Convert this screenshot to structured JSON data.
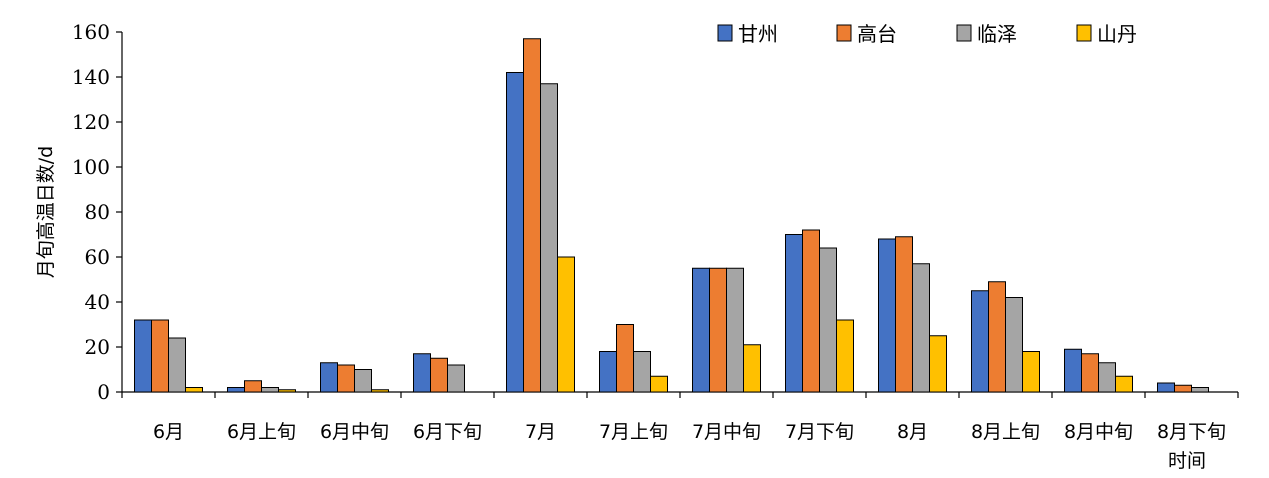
{
  "chart_data": {
    "type": "bar",
    "title": "",
    "xlabel": "时间",
    "ylabel": "月旬高温日数/d",
    "ylim": [
      0,
      160
    ],
    "yticks": [
      0,
      20,
      40,
      60,
      80,
      100,
      120,
      140,
      160
    ],
    "grid": false,
    "legend_position": "top-right",
    "categories": [
      "6月",
      "6月上旬",
      "6月中旬",
      "6月下旬",
      "7月",
      "7月上旬",
      "7月中旬",
      "7月下旬",
      "8月",
      "8月上旬",
      "8月中旬",
      "8月下旬"
    ],
    "series": [
      {
        "name": "甘州",
        "color": "#4472C4",
        "values": [
          32,
          2,
          13,
          17,
          142,
          18,
          55,
          70,
          68,
          45,
          19,
          4
        ]
      },
      {
        "name": "高台",
        "color": "#ED7D31",
        "values": [
          32,
          5,
          12,
          15,
          157,
          30,
          55,
          72,
          69,
          49,
          17,
          3
        ]
      },
      {
        "name": "临泽",
        "color": "#A5A5A5",
        "values": [
          24,
          2,
          10,
          12,
          137,
          18,
          55,
          64,
          57,
          42,
          13,
          2
        ]
      },
      {
        "name": "山丹",
        "color": "#FFC000",
        "values": [
          2,
          1,
          1,
          0,
          60,
          7,
          21,
          32,
          25,
          18,
          7,
          0
        ]
      }
    ]
  }
}
